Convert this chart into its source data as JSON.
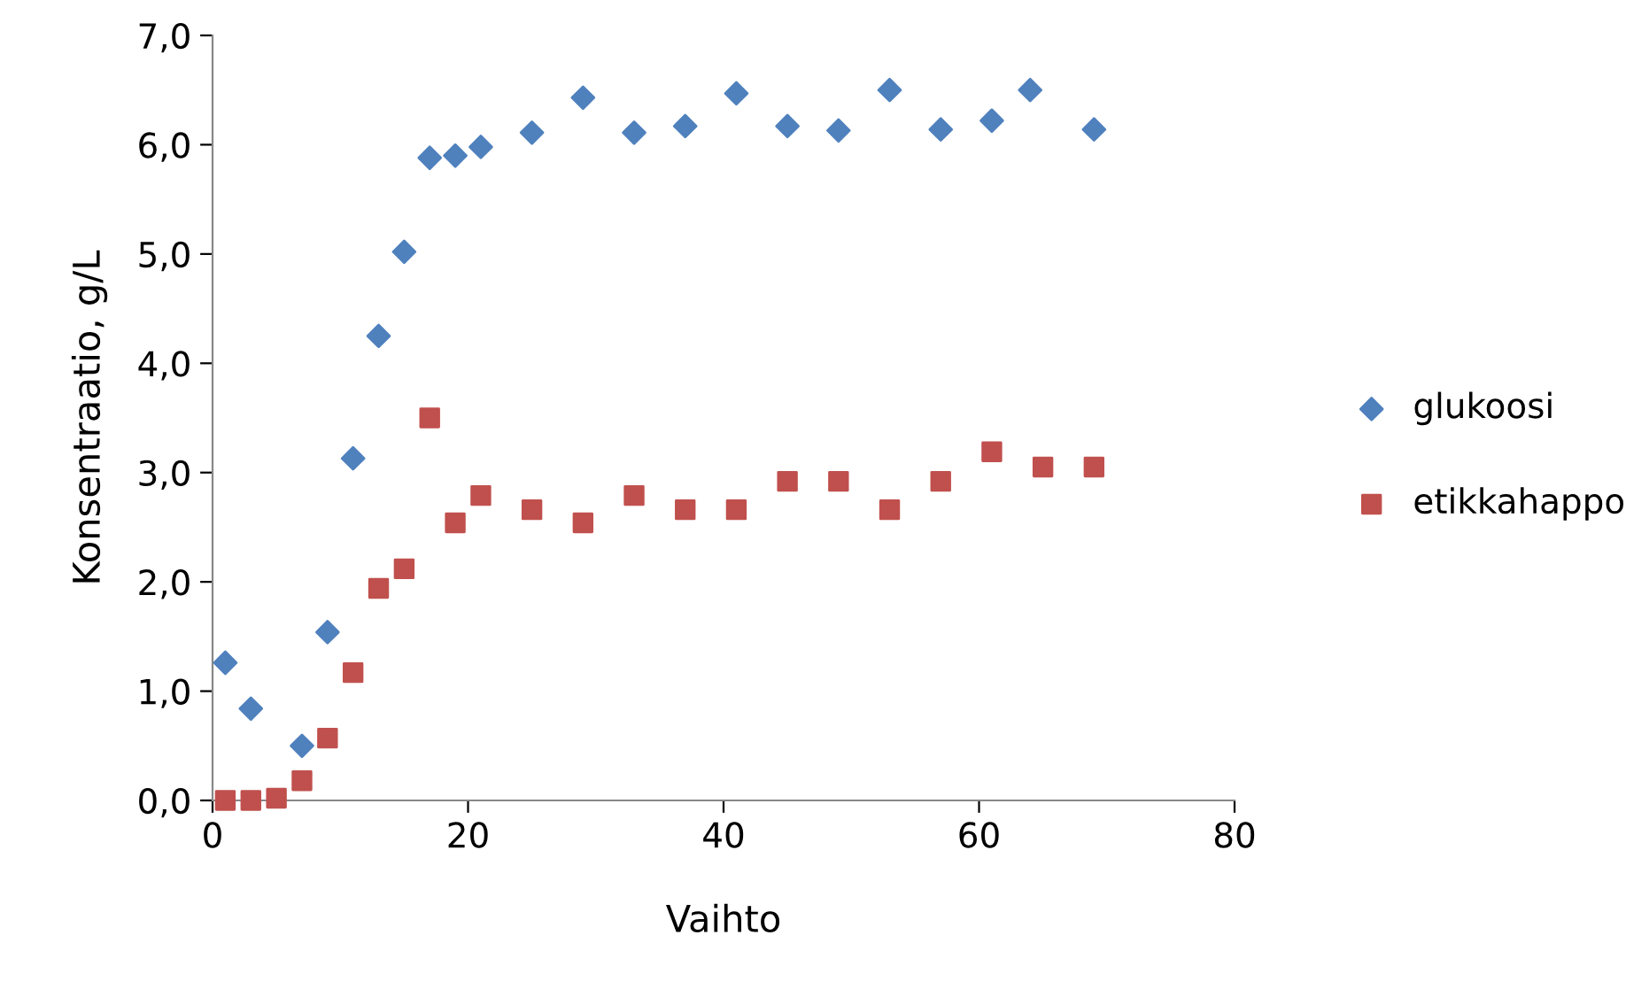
{
  "chart_data": {
    "type": "scatter",
    "xlabel": "Vaihto",
    "ylabel": "Konsentraatio, g/L",
    "xlim": [
      0,
      80
    ],
    "ylim": [
      0,
      7
    ],
    "xticks": [
      0,
      20,
      40,
      60,
      80
    ],
    "yticks": [
      {
        "value": 0,
        "label": "0,0"
      },
      {
        "value": 1,
        "label": "1,0"
      },
      {
        "value": 2,
        "label": "2,0"
      },
      {
        "value": 3,
        "label": "3,0"
      },
      {
        "value": 4,
        "label": "4,0"
      },
      {
        "value": 5,
        "label": "5,0"
      },
      {
        "value": 6,
        "label": "6,0"
      },
      {
        "value": 7,
        "label": "7,0"
      }
    ],
    "grid": false,
    "legend": "right",
    "series": [
      {
        "name": "glukoosi",
        "color": "#4f81bd",
        "marker": "diamond",
        "x": [
          1,
          3,
          7,
          9,
          11,
          13,
          15,
          17,
          19,
          21,
          25,
          29,
          33,
          37,
          41,
          45,
          49,
          53,
          57,
          61,
          64,
          69
        ],
        "values": [
          1.26,
          0.84,
          0.5,
          1.54,
          3.13,
          4.25,
          5.02,
          5.88,
          5.9,
          5.98,
          6.11,
          6.43,
          6.11,
          6.17,
          6.47,
          6.17,
          6.13,
          6.5,
          6.14,
          6.22,
          6.5,
          6.14
        ]
      },
      {
        "name": "etikkahappo",
        "color": "#c0504d",
        "marker": "square",
        "x": [
          1,
          3,
          5,
          7,
          9,
          11,
          13,
          15,
          17,
          19,
          21,
          25,
          29,
          33,
          37,
          41,
          45,
          49,
          53,
          57,
          61,
          65,
          69
        ],
        "values": [
          0,
          0,
          0.02,
          0.18,
          0.57,
          1.17,
          1.94,
          2.12,
          3.5,
          2.54,
          2.79,
          2.66,
          2.54,
          2.79,
          2.66,
          2.66,
          2.92,
          2.92,
          2.66,
          2.92,
          3.19,
          3.05,
          3.05
        ]
      }
    ]
  }
}
